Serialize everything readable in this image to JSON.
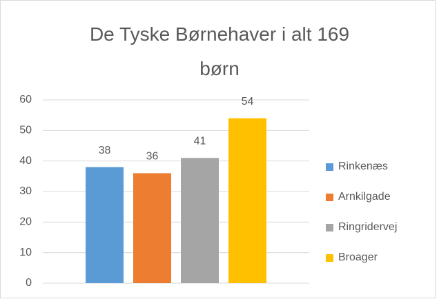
{
  "chart_data": {
    "type": "bar",
    "title": "De Tyske Børnehaver i alt 169 børn",
    "categories": [
      null
    ],
    "series": [
      {
        "name": "Rinkenæs",
        "color": "#5b9bd5",
        "values": [
          38
        ]
      },
      {
        "name": "Arnkilgade",
        "color": "#ed7d31",
        "values": [
          36
        ]
      },
      {
        "name": "Ringridervej",
        "color": "#a5a5a5",
        "values": [
          41
        ]
      },
      {
        "name": "Broager",
        "color": "#ffc000",
        "values": [
          54
        ]
      }
    ],
    "ylim": [
      0,
      60
    ],
    "yticks": [
      0,
      10,
      20,
      30,
      40,
      50,
      60
    ],
    "grid": true,
    "legend": "right",
    "data_labels": true
  }
}
